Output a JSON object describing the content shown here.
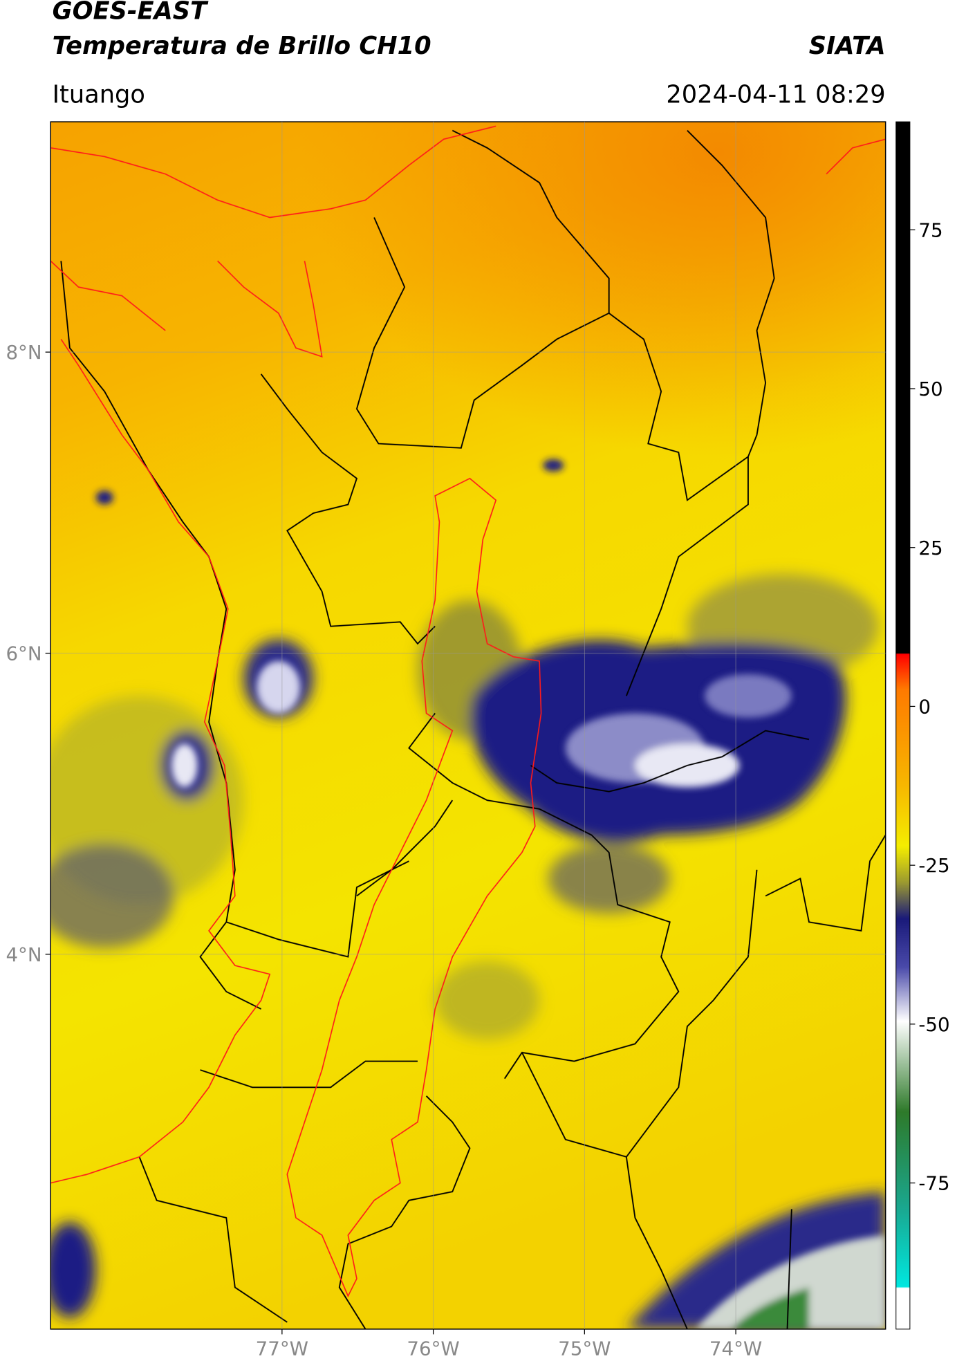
{
  "header": {
    "title": "GOES-EAST",
    "subtitle": "Temperatura de Brillo CH10",
    "source": "SIATA",
    "location": "Ituango",
    "datetime": "2024-04-11 08:29"
  },
  "map": {
    "xlim": [
      -78.53,
      -73.01
    ],
    "ylim": [
      1.51,
      9.53
    ],
    "xticks": [
      {
        "value": -77,
        "label": "77°W"
      },
      {
        "value": -76,
        "label": "76°W"
      },
      {
        "value": -75,
        "label": "75°W"
      },
      {
        "value": -74,
        "label": "74°W"
      }
    ],
    "yticks": [
      {
        "value": 8,
        "label": "8°N"
      },
      {
        "value": 6,
        "label": "6°N"
      },
      {
        "value": 4,
        "label": "4°N"
      }
    ],
    "grid": true
  },
  "colorbar": {
    "clim": [
      -98,
      92
    ],
    "ticks": [
      75,
      50,
      25,
      0,
      -25,
      -50,
      -75
    ]
  }
}
